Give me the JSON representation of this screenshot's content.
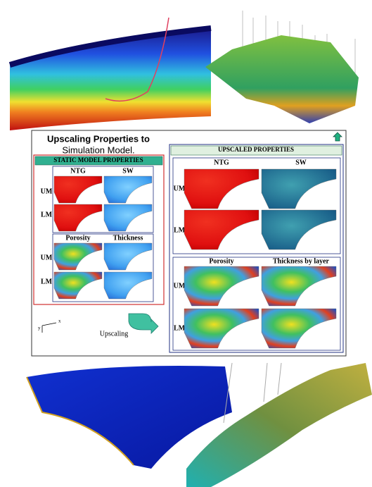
{
  "panel": {
    "title_line1": "Upscaling Properties to",
    "title_line2": "Simulation Model.",
    "static": {
      "header": "STATIC MODEL PROPERTIES",
      "columns": [
        "NTG",
        "SW"
      ],
      "columns2": [
        "Porosity",
        "Thickness"
      ],
      "rows": [
        "UM",
        "LM"
      ],
      "rows2": [
        "UM",
        "LM"
      ]
    },
    "upscaled": {
      "header": "UPSCALED PROPERTIES",
      "columns": [
        "NTG",
        "SW"
      ],
      "columns2": [
        "Porosity",
        "Thickness by layer"
      ],
      "rows": [
        "UM",
        "LM"
      ],
      "rows2": [
        "UM",
        "LM"
      ]
    },
    "axis_x": "x",
    "axis_y": "y",
    "arrow_label": "Upscaling"
  }
}
